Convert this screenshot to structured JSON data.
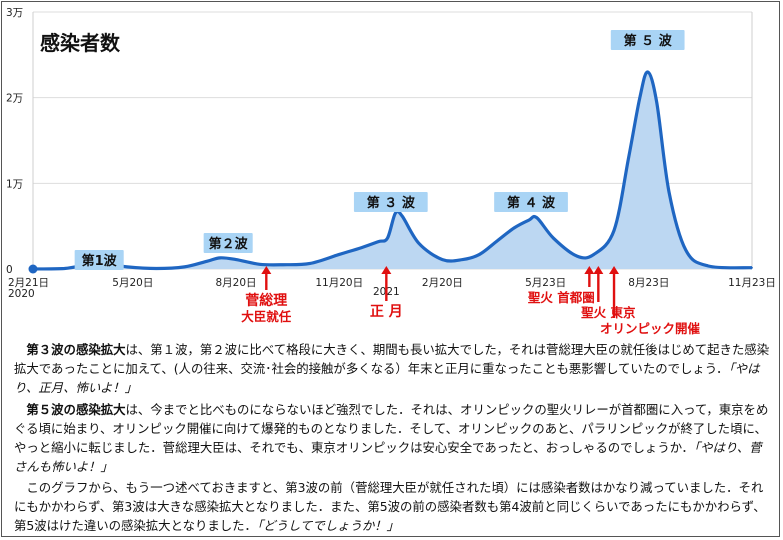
{
  "chart_data": {
    "type": "area",
    "title": "感染者数",
    "y_ticks": [
      {
        "value": 0,
        "label": "0"
      },
      {
        "value": 10000,
        "label": "1万"
      },
      {
        "value": 20000,
        "label": "2万"
      },
      {
        "value": 30000,
        "label": "3万"
      }
    ],
    "ylim": [
      0,
      30000
    ],
    "x_ticks": [
      {
        "date": "2020-02-21",
        "label": "2月21日",
        "sub": "2020"
      },
      {
        "date": "2020-05-20",
        "label": "5月20日"
      },
      {
        "date": "2020-08-20",
        "label": "8月20日"
      },
      {
        "date": "2020-11-20",
        "label": "11月20日"
      },
      {
        "date": "2021-01-01",
        "label": "",
        "sub": "2021"
      },
      {
        "date": "2021-02-20",
        "label": "2月20日"
      },
      {
        "date": "2021-05-23",
        "label": "5月23日"
      },
      {
        "date": "2021-08-23",
        "label": "8月23日"
      },
      {
        "date": "2021-11-23",
        "label": "11月23日"
      }
    ],
    "xlim": [
      "2020-02-21",
      "2021-11-23"
    ],
    "series": [
      {
        "style": "smoothed line + daily area",
        "points": [
          [
            "2020-02-21",
            0
          ],
          [
            "2020-03-20",
            60
          ],
          [
            "2020-04-12",
            550
          ],
          [
            "2020-04-25",
            620
          ],
          [
            "2020-05-15",
            250
          ],
          [
            "2020-06-10",
            60
          ],
          [
            "2020-07-05",
            250
          ],
          [
            "2020-07-25",
            900
          ],
          [
            "2020-08-06",
            1300
          ],
          [
            "2020-08-20",
            1100
          ],
          [
            "2020-09-10",
            550
          ],
          [
            "2020-10-01",
            500
          ],
          [
            "2020-10-25",
            650
          ],
          [
            "2020-11-20",
            1700
          ],
          [
            "2020-12-10",
            2500
          ],
          [
            "2020-12-25",
            3200
          ],
          [
            "2021-01-02",
            3600
          ],
          [
            "2021-01-09",
            6500
          ],
          [
            "2021-01-15",
            6200
          ],
          [
            "2021-01-30",
            3000
          ],
          [
            "2021-02-20",
            1100
          ],
          [
            "2021-03-10",
            1100
          ],
          [
            "2021-03-25",
            1700
          ],
          [
            "2021-04-10",
            3300
          ],
          [
            "2021-04-25",
            4800
          ],
          [
            "2021-05-08",
            5700
          ],
          [
            "2021-05-15",
            6000
          ],
          [
            "2021-05-30",
            3600
          ],
          [
            "2021-06-20",
            1500
          ],
          [
            "2021-07-05",
            1700
          ],
          [
            "2021-07-23",
            4500
          ],
          [
            "2021-08-05",
            13000
          ],
          [
            "2021-08-15",
            20000
          ],
          [
            "2021-08-22",
            23000
          ],
          [
            "2021-08-30",
            19500
          ],
          [
            "2021-09-10",
            9000
          ],
          [
            "2021-09-25",
            2200
          ],
          [
            "2021-10-15",
            350
          ],
          [
            "2021-11-23",
            150
          ]
        ]
      }
    ],
    "wave_labels": [
      {
        "text": "第1波",
        "date": "2020-04-20"
      },
      {
        "text": "第２波",
        "date": "2020-08-13"
      },
      {
        "text": "第 ３ 波",
        "date": "2021-01-05"
      },
      {
        "text": "第 ４ 波",
        "date": "2021-05-10"
      },
      {
        "text": "第 ５ 波",
        "date": "2021-08-22"
      }
    ],
    "annotations": [
      {
        "date": "2020-09-16",
        "lines": [
          "菅総理",
          "大臣就任"
        ]
      },
      {
        "date": "2021-01-01",
        "lines": [
          "正 月"
        ]
      },
      {
        "date": "2021-07-01",
        "lines": [
          "聖火 首都圏"
        ]
      },
      {
        "date": "2021-07-09",
        "lines": [
          "聖火 東京"
        ]
      },
      {
        "date": "2021-07-23",
        "lines": [
          "オリンピック開催"
        ]
      }
    ],
    "colors": {
      "line": "#1f66c2",
      "fill": "#bcd7f2",
      "label_bg": "#a9d4f5",
      "annotation": "#e01010",
      "grid": "#dddddd"
    }
  },
  "text": {
    "p1": [
      {
        "t": "第３波の感染拡大",
        "s": "b"
      },
      {
        "t": "は、第１波，第２波に比べて格段に大きく、期間も長い拡大でした，それは菅総理大臣の就任後はじめて起きた感染拡大であったことに加えて、(人の往来、交流･社会的接触が多くなる）年末と正月に重なったことも悪影響していたのでしょう．"
      },
      {
        "t": "「やはり、正月、怖いよ！」",
        "s": "i"
      }
    ],
    "p2": [
      {
        "t": "第５波の感染拡大",
        "s": "b"
      },
      {
        "t": "は、今までと比べものにならないほど強烈でした．それは、オリンピックの聖火リレーが首都圏に入って，東京をめぐる頃に始まり、オリンピック開催に向けて爆発的ものとなりました．そして、オリンピックのあと、パラリンピックが終了した頃に、やっと縮小に転じました．菅総理大臣は、それでも、東京オリンピックは安心安全であったと、おっしゃるのでしょうか．"
      },
      {
        "t": "「やはり、菅さんも怖いよ！」",
        "s": "i"
      }
    ],
    "p3": [
      {
        "t": "このグラフから、もう一つ述べておきますと、第3波の前（菅総理大臣が就任された頃）には感染者数はかなり減っていました．それにもかかわらず、第3波は大きな感染拡大となりました．また、第5波の前の感染者数も第4波前と同じくらいであったにもかかわらず、第5波はけた違いの感染拡大となりました．"
      },
      {
        "t": "「どうしてでしょうか！」",
        "s": "i"
      }
    ]
  }
}
